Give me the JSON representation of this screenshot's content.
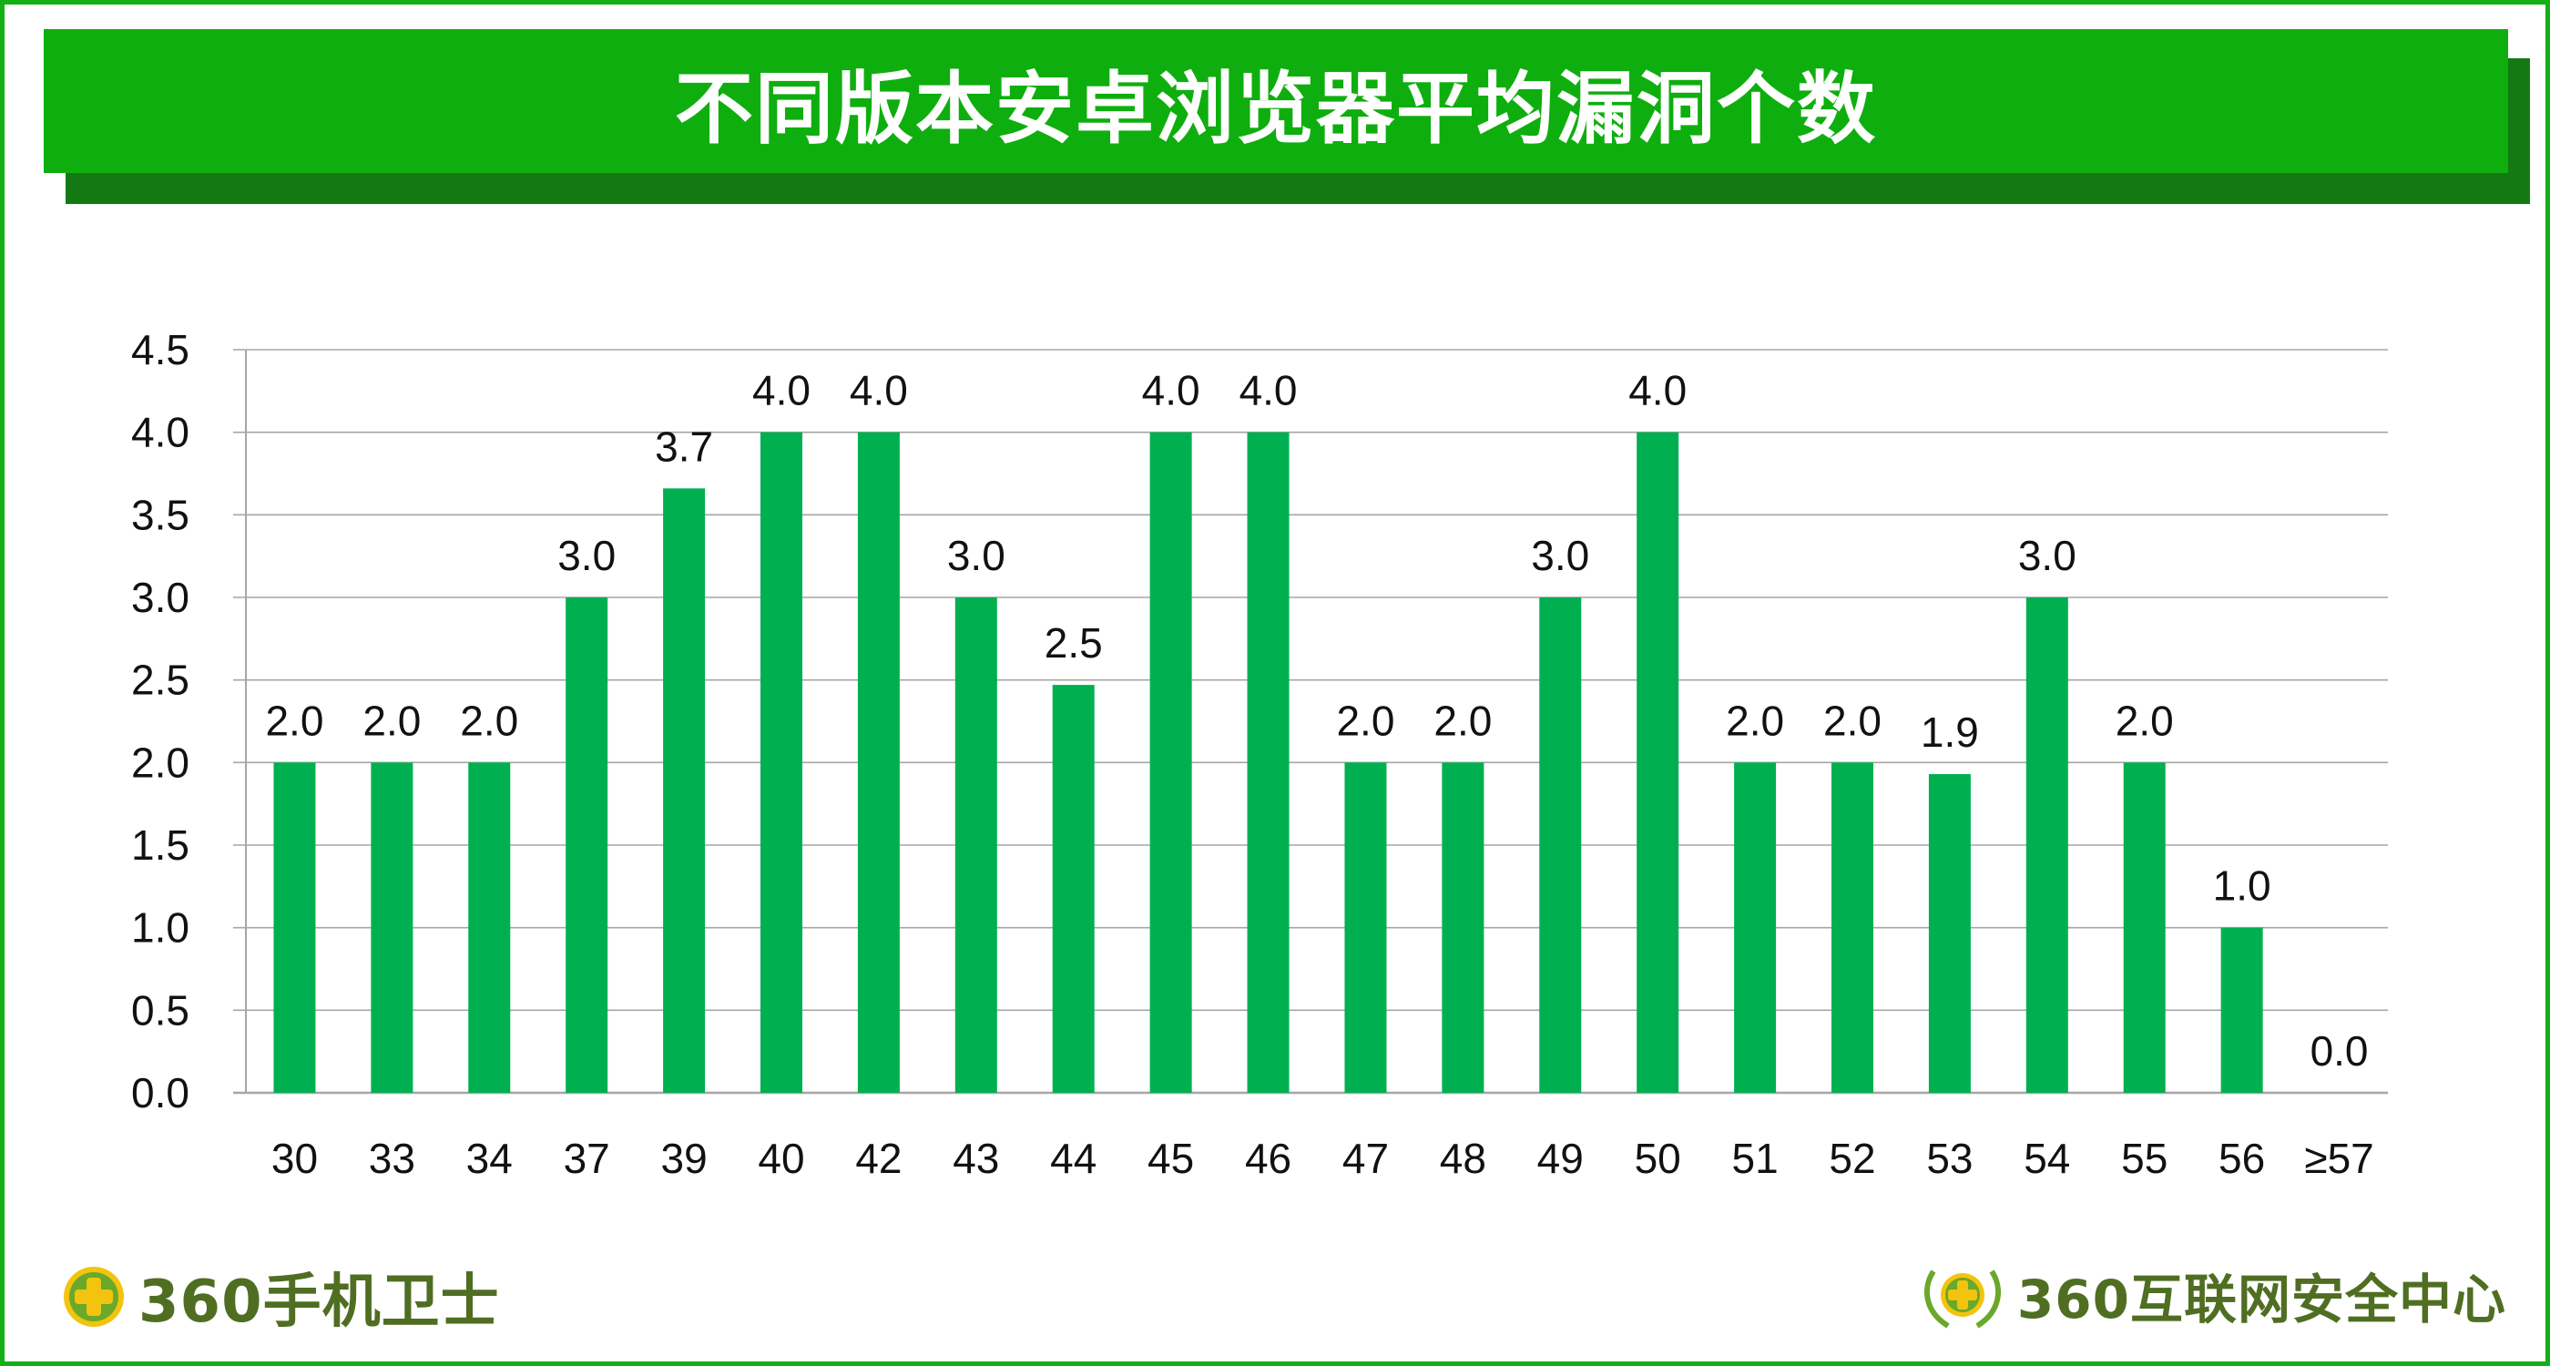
{
  "title": "不同版本安卓浏览器平均漏洞个数",
  "footer": {
    "left_brand": "360手机卫士",
    "right_brand": "360互联网安全中心"
  },
  "colors": {
    "frame": "#12b012",
    "title_bar": "#0fae0f",
    "title_shadow": "#137a13",
    "bar": "#00b050",
    "grid": "#a6a6a6",
    "logo_text": "#4f6e22"
  },
  "chart_data": {
    "type": "bar",
    "categories": [
      "30",
      "33",
      "34",
      "37",
      "39",
      "40",
      "42",
      "43",
      "44",
      "45",
      "46",
      "47",
      "48",
      "49",
      "50",
      "51",
      "52",
      "53",
      "54",
      "55",
      "56",
      "≥57"
    ],
    "values": [
      2.0,
      2.0,
      2.0,
      3.0,
      3.66,
      4.0,
      4.0,
      3.0,
      2.47,
      4.0,
      4.0,
      2.0,
      2.0,
      3.0,
      4.0,
      2.0,
      2.0,
      1.93,
      3.0,
      2.0,
      1.0,
      0.0
    ],
    "value_labels": [
      "2.0",
      "2.0",
      "2.0",
      "3.0",
      "3.7",
      "4.0",
      "4.0",
      "3.0",
      "2.5",
      "4.0",
      "4.0",
      "2.0",
      "2.0",
      "3.0",
      "4.0",
      "2.0",
      "2.0",
      "1.9",
      "3.0",
      "2.0",
      "1.0",
      "0.0"
    ],
    "y_ticks": [
      "0.0",
      "0.5",
      "1.0",
      "1.5",
      "2.0",
      "2.5",
      "3.0",
      "3.5",
      "4.0",
      "4.5"
    ],
    "ylim": [
      0,
      4.5
    ],
    "grid": true,
    "legend": "none"
  }
}
